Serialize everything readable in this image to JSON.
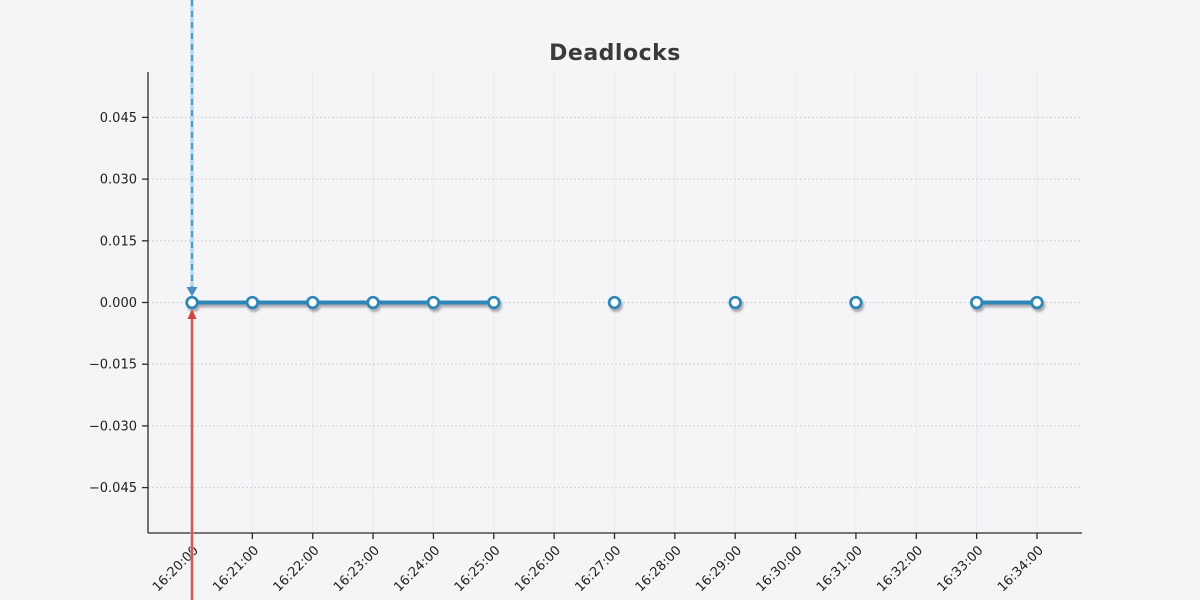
{
  "chart_data": {
    "type": "line",
    "title": "Deadlocks",
    "x_tick_labels": [
      "16:20:00",
      "16:21:00",
      "16:22:00",
      "16:23:00",
      "16:24:00",
      "16:25:00",
      "16:26:00",
      "16:27:00",
      "16:28:00",
      "16:29:00",
      "16:30:00",
      "16:31:00",
      "16:32:00",
      "16:33:00",
      "16:34:00"
    ],
    "y_tick_labels": [
      "0.045",
      "0.030",
      "0.015",
      "0.000",
      "−0.015",
      "−0.030",
      "−0.045"
    ],
    "y_tick_values": [
      0.045,
      0.03,
      0.015,
      0.0,
      -0.015,
      -0.03,
      -0.045
    ],
    "ylim": [
      -0.0565,
      0.0565
    ],
    "grid": true,
    "legend": "none",
    "series": [
      {
        "name": "Deadlocks",
        "color": "#2e86b8",
        "marker": "open-circle",
        "runs": [
          {
            "x": [
              "16:20:00",
              "16:21:00",
              "16:22:00",
              "16:23:00",
              "16:24:00",
              "16:25:00"
            ],
            "y": [
              0,
              0,
              0,
              0,
              0,
              0
            ]
          },
          {
            "x": [
              "16:27:00"
            ],
            "y": [
              0
            ]
          },
          {
            "x": [
              "16:29:00"
            ],
            "y": [
              0
            ]
          },
          {
            "x": [
              "16:31:00"
            ],
            "y": [
              0
            ]
          },
          {
            "x": [
              "16:33:00",
              "16:34:00"
            ],
            "y": [
              0,
              0
            ]
          }
        ]
      }
    ],
    "annotations": [
      {
        "id": "down-arrow",
        "type": "vline",
        "x": "16:20:00",
        "y_target": 0,
        "direction": "down",
        "style": "dashed",
        "color": "#4a90c6",
        "halo_color": "#bedcf0",
        "extent": "from-top-edge-of-image"
      },
      {
        "id": "up-arrow",
        "type": "vline",
        "x": "16:20:00",
        "y_target": 0,
        "direction": "up",
        "style": "solid",
        "color": "#cf4540",
        "halo_color": "#e8a29f",
        "extent": "to-bottom-edge-of-image"
      }
    ],
    "colors": {
      "background": "#f5f5f7",
      "axis": "#2a2a2a",
      "gridline_h": "#c6c6cb",
      "gridline_v": "#ebebee",
      "tick_label": "#1f1f1f",
      "title": "#3a3a3a",
      "marker_fill": "#ffffff"
    }
  }
}
